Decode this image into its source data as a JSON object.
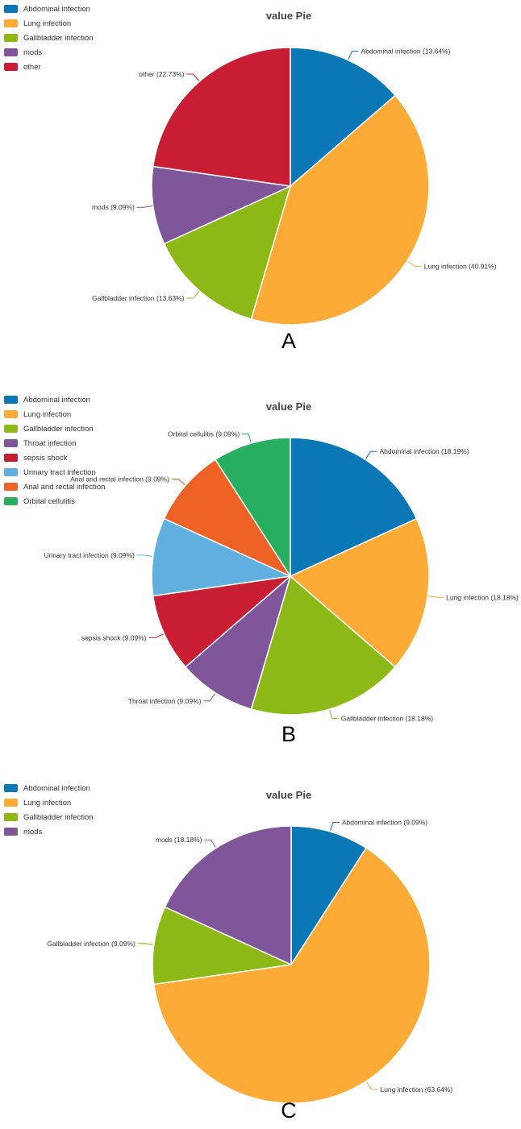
{
  "colors": {
    "Abdominal infection": "#0a78b4",
    "Lung infection": "#fbab36",
    "Gallbladder infection": "#8cb916",
    "mods": "#7e5699",
    "Throat infection": "#7e5699",
    "other": "#c91d33",
    "sepsis shock": "#c91d33",
    "Urinary tract infection": "#5fb0de",
    "Anal and rectal infection": "#ef6226",
    "Orbital cellulitis": "#27ae60"
  },
  "chart_data": [
    {
      "type": "pie",
      "panel": "A",
      "title": "value Pie",
      "legend_position": "top-left",
      "legend": [
        "Abdominal infection",
        "Lung infection",
        "Gallbladder infection",
        "mods",
        "other"
      ],
      "slices": [
        {
          "name": "Abdominal infection",
          "percent": 13.64,
          "label": "Abdominal infection (13.64%)"
        },
        {
          "name": "Lung infection",
          "percent": 40.91,
          "label": "Lung infection (40.91%)"
        },
        {
          "name": "Gallbladder infection",
          "percent": 13.63,
          "label": "Gallbladder infection (13.63%)"
        },
        {
          "name": "mods",
          "percent": 9.09,
          "label": "mods (9.09%)"
        },
        {
          "name": "other",
          "percent": 22.73,
          "label": "other (22.73%)"
        }
      ]
    },
    {
      "type": "pie",
      "panel": "B",
      "title": "value Pie",
      "legend_position": "top-left",
      "legend": [
        "Abdominal infection",
        "Lung infection",
        "Gallbladder infection",
        "Throat infection",
        "sepsis shock",
        "Urinary tract infection",
        "Anal and rectal infection",
        "Orbital cellulitis"
      ],
      "slices": [
        {
          "name": "Abdominal infection",
          "percent": 18.19,
          "label": "Abdominal infection (18.19%)"
        },
        {
          "name": "Lung infection",
          "percent": 18.18,
          "label": "Lung infection (18.18%)"
        },
        {
          "name": "Gallbladder infection",
          "percent": 18.18,
          "label": "Gallbladder infection (18.18%)"
        },
        {
          "name": "Throat infection",
          "percent": 9.09,
          "label": "Throat infection (9.09%)"
        },
        {
          "name": "sepsis shock",
          "percent": 9.09,
          "label": "sepsis shock (9.09%)"
        },
        {
          "name": "Urinary tract infection",
          "percent": 9.09,
          "label": "Urinary tract infection (9.09%)"
        },
        {
          "name": "Anal and rectal infection",
          "percent": 9.09,
          "label": "Anal and rectal infection (9.09%)"
        },
        {
          "name": "Orbital cellulitis",
          "percent": 9.09,
          "label": "Orbital cellulitis (9.09%)"
        }
      ]
    },
    {
      "type": "pie",
      "panel": "C",
      "title": "value Pie",
      "legend_position": "top-left",
      "legend": [
        "Abdominal infection",
        "Lung infection",
        "Gallbladder infection",
        "mods"
      ],
      "slices": [
        {
          "name": "Abdominal infection",
          "percent": 9.09,
          "label": "Abdominal infection (9.09%)"
        },
        {
          "name": "Lung infection",
          "percent": 63.64,
          "label": "Lung infection (63.64%)"
        },
        {
          "name": "Gallbladder infection",
          "percent": 9.09,
          "label": "Gallbladder infection (9.09%)"
        },
        {
          "name": "mods",
          "percent": 18.18,
          "label": "mods (18.18%)"
        }
      ]
    }
  ]
}
